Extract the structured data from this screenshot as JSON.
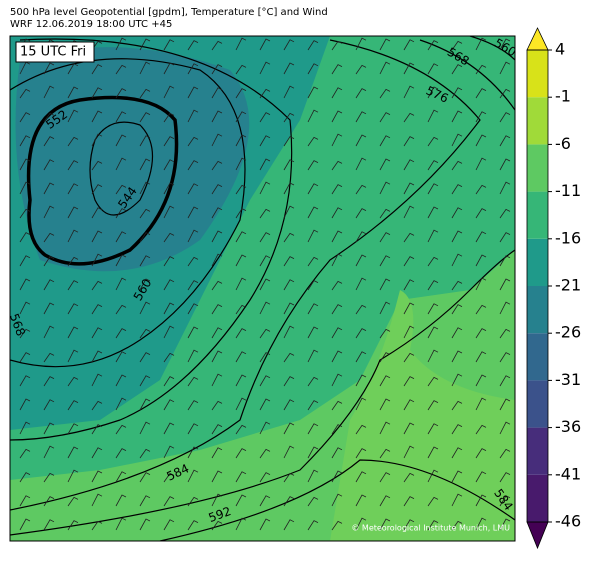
{
  "header": {
    "line1": "500 hPa level Geopotential [gpdm], Temperature [°C] and Wind",
    "line2": "WRF 12.06.2019 18:00 UTC +45"
  },
  "map": {
    "time_label": "15 UTC Fri",
    "contour_labels": [
      "552",
      "544",
      "560",
      "568",
      "576",
      "568",
      "560",
      "584",
      "592",
      "584"
    ],
    "credit": "© Meteorological Institute Munich, LMU"
  },
  "colorbar": {
    "ylim": [
      -46,
      4
    ],
    "ticks": [
      4,
      -1,
      -6,
      -11,
      -16,
      -21,
      -26,
      -31,
      -36,
      -41,
      -46
    ],
    "colors": [
      "#d8e219",
      "#a0da39",
      "#5ec962",
      "#36b677",
      "#1f9a8a",
      "#26818e",
      "#31688e",
      "#3b528b",
      "#472d7b",
      "#481a6c"
    ],
    "extend_colors": {
      "max": "#fde725",
      "min": "#440154"
    }
  }
}
